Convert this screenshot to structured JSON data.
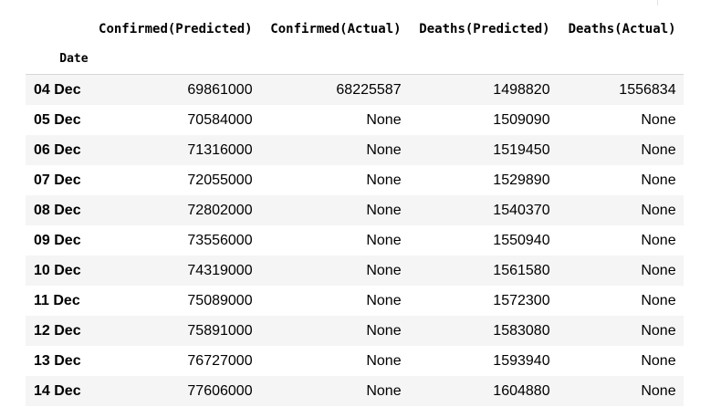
{
  "table": {
    "columns": [
      "Confirmed(Predicted)",
      "Confirmed(Actual)",
      "Deaths(Predicted)",
      "Deaths(Actual)"
    ],
    "index_name": "Date",
    "rows": [
      {
        "date": "04 Dec",
        "cells": [
          "69861000",
          "68225587",
          "1498820",
          "1556834"
        ]
      },
      {
        "date": "05 Dec",
        "cells": [
          "70584000",
          "None",
          "1509090",
          "None"
        ]
      },
      {
        "date": "06 Dec",
        "cells": [
          "71316000",
          "None",
          "1519450",
          "None"
        ]
      },
      {
        "date": "07 Dec",
        "cells": [
          "72055000",
          "None",
          "1529890",
          "None"
        ]
      },
      {
        "date": "08 Dec",
        "cells": [
          "72802000",
          "None",
          "1540370",
          "None"
        ]
      },
      {
        "date": "09 Dec",
        "cells": [
          "73556000",
          "None",
          "1550940",
          "None"
        ]
      },
      {
        "date": "10 Dec",
        "cells": [
          "74319000",
          "None",
          "1561580",
          "None"
        ]
      },
      {
        "date": "11 Dec",
        "cells": [
          "75089000",
          "None",
          "1572300",
          "None"
        ]
      },
      {
        "date": "12 Dec",
        "cells": [
          "75891000",
          "None",
          "1583080",
          "None"
        ]
      },
      {
        "date": "13 Dec",
        "cells": [
          "76727000",
          "None",
          "1593940",
          "None"
        ]
      },
      {
        "date": "14 Dec",
        "cells": [
          "77606000",
          "None",
          "1604880",
          "None"
        ]
      }
    ]
  }
}
